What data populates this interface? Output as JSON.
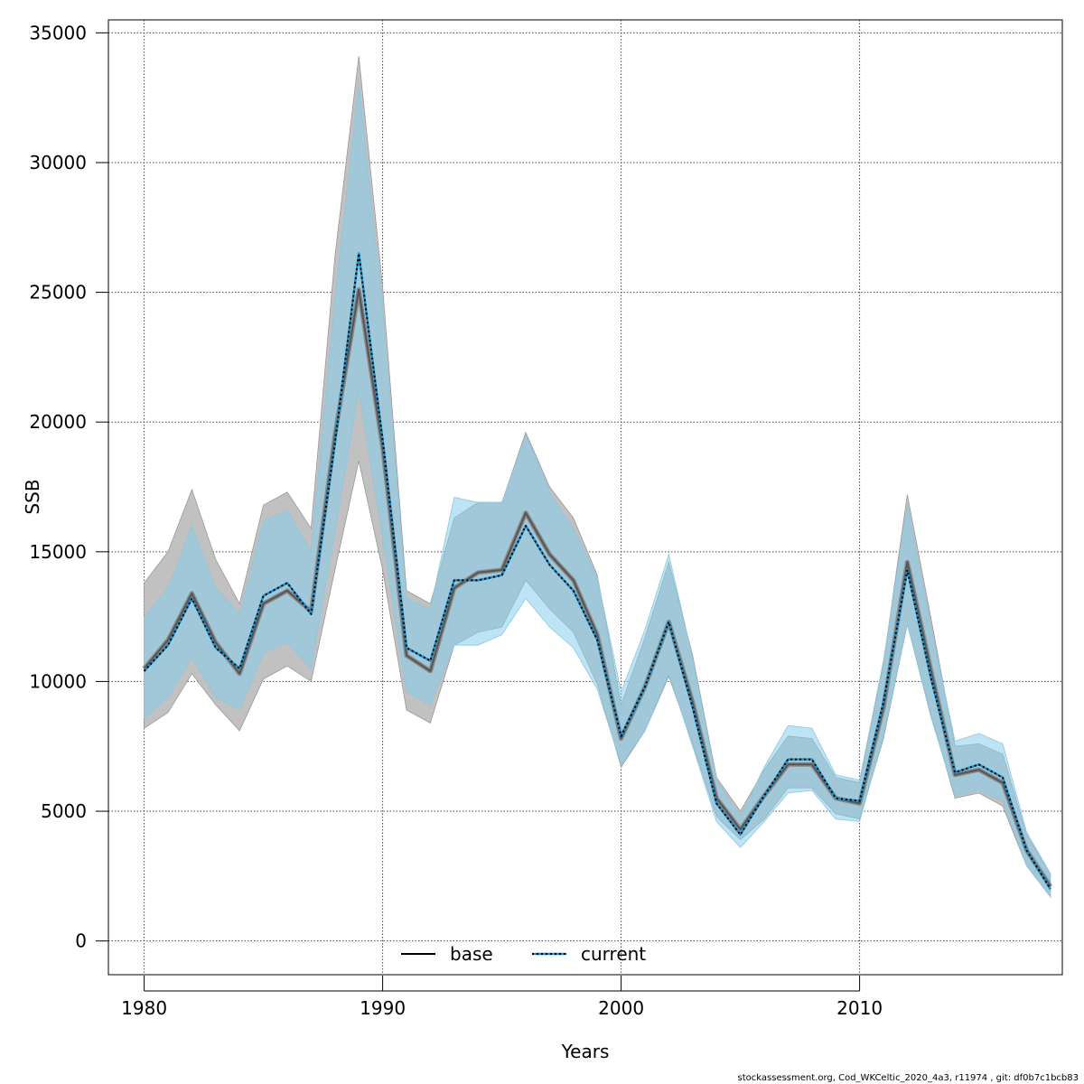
{
  "chart_data": {
    "type": "line",
    "title": "",
    "xlabel": "Years",
    "ylabel": "SSB",
    "xlim": [
      1978.5,
      2018.5
    ],
    "ylim": [
      -1300,
      35500
    ],
    "x_ticks": [
      1980,
      1990,
      2000,
      2010
    ],
    "y_ticks": [
      0,
      5000,
      10000,
      15000,
      20000,
      25000,
      30000,
      35000
    ],
    "grid": true,
    "legend_position": "bottom-center",
    "x": [
      1980,
      1981,
      1982,
      1983,
      1984,
      1985,
      1986,
      1987,
      1988,
      1989,
      1990,
      1991,
      1992,
      1993,
      1994,
      1995,
      1996,
      1997,
      1998,
      1999,
      2000,
      2001,
      2002,
      2003,
      2004,
      2005,
      2006,
      2007,
      2008,
      2009,
      2010,
      2011,
      2012,
      2013,
      2014,
      2015,
      2016,
      2017,
      2018
    ],
    "series": [
      {
        "name": "base",
        "color": "#555555",
        "line_style": "solid",
        "band_color": "#bebebe",
        "values": [
          10500,
          11600,
          13400,
          11500,
          10300,
          13000,
          13500,
          12700,
          19500,
          25100,
          19000,
          11000,
          10400,
          13600,
          14200,
          14300,
          16500,
          14900,
          13900,
          11800,
          7800,
          9800,
          12300,
          9200,
          5500,
          4300,
          5600,
          6800,
          6800,
          5500,
          5300,
          9000,
          14600,
          10400,
          6400,
          6600,
          6100,
          3500,
          2100
        ],
        "lower": [
          8200,
          8800,
          10300,
          9100,
          8100,
          10100,
          10600,
          10000,
          14300,
          18500,
          14300,
          8900,
          8400,
          11400,
          11900,
          12100,
          13900,
          12800,
          11900,
          9900,
          6700,
          8100,
          10200,
          7600,
          4800,
          3900,
          4700,
          5900,
          5900,
          4900,
          4700,
          7800,
          12200,
          8700,
          5500,
          5700,
          5200,
          2900,
          1700
        ],
        "upper": [
          13800,
          15000,
          17400,
          14700,
          13000,
          16800,
          17300,
          15900,
          26400,
          34100,
          25200,
          13500,
          13000,
          16300,
          16900,
          16900,
          19600,
          17500,
          16300,
          14100,
          9100,
          11700,
          14600,
          11000,
          6300,
          5000,
          6600,
          7900,
          7800,
          6300,
          6100,
          10700,
          17200,
          12400,
          7500,
          7600,
          7200,
          4100,
          2600
        ]
      },
      {
        "name": "current",
        "color": "#1a8fc9",
        "line_style": "dotted",
        "band_color": "#87ceeb",
        "values": [
          10400,
          11400,
          13200,
          11300,
          10500,
          13300,
          13800,
          12600,
          19200,
          26500,
          19300,
          11300,
          10800,
          13900,
          13900,
          14100,
          16000,
          14500,
          13500,
          11600,
          7900,
          9800,
          12300,
          9000,
          5300,
          4100,
          5600,
          7000,
          7000,
          5500,
          5400,
          9200,
          14300,
          10100,
          6500,
          6800,
          6300,
          3500,
          2000
        ],
        "lower": [
          8600,
          9400,
          10900,
          9400,
          8900,
          11100,
          11500,
          10500,
          15800,
          21200,
          15500,
          9600,
          9100,
          11400,
          11400,
          11800,
          13200,
          12100,
          11300,
          9700,
          6800,
          8100,
          10300,
          7500,
          4600,
          3600,
          4600,
          5700,
          5800,
          4700,
          4600,
          7900,
          12200,
          8600,
          5600,
          5800,
          5400,
          2900,
          1700
        ],
        "upper": [
          12500,
          13600,
          16000,
          13600,
          12600,
          16200,
          16600,
          15000,
          24800,
          33000,
          24400,
          13200,
          12800,
          17100,
          16900,
          16900,
          19500,
          17300,
          15900,
          14000,
          9600,
          12000,
          14900,
          10900,
          6200,
          4800,
          6700,
          8300,
          8200,
          6400,
          6200,
          10800,
          16800,
          12100,
          7700,
          8000,
          7600,
          4200,
          2600
        ]
      }
    ]
  },
  "footer": {
    "credit": "stockassessment.org, Cod_WKCeltic_2020_4a3, r11974 , git: df0b7c1bcb83"
  }
}
